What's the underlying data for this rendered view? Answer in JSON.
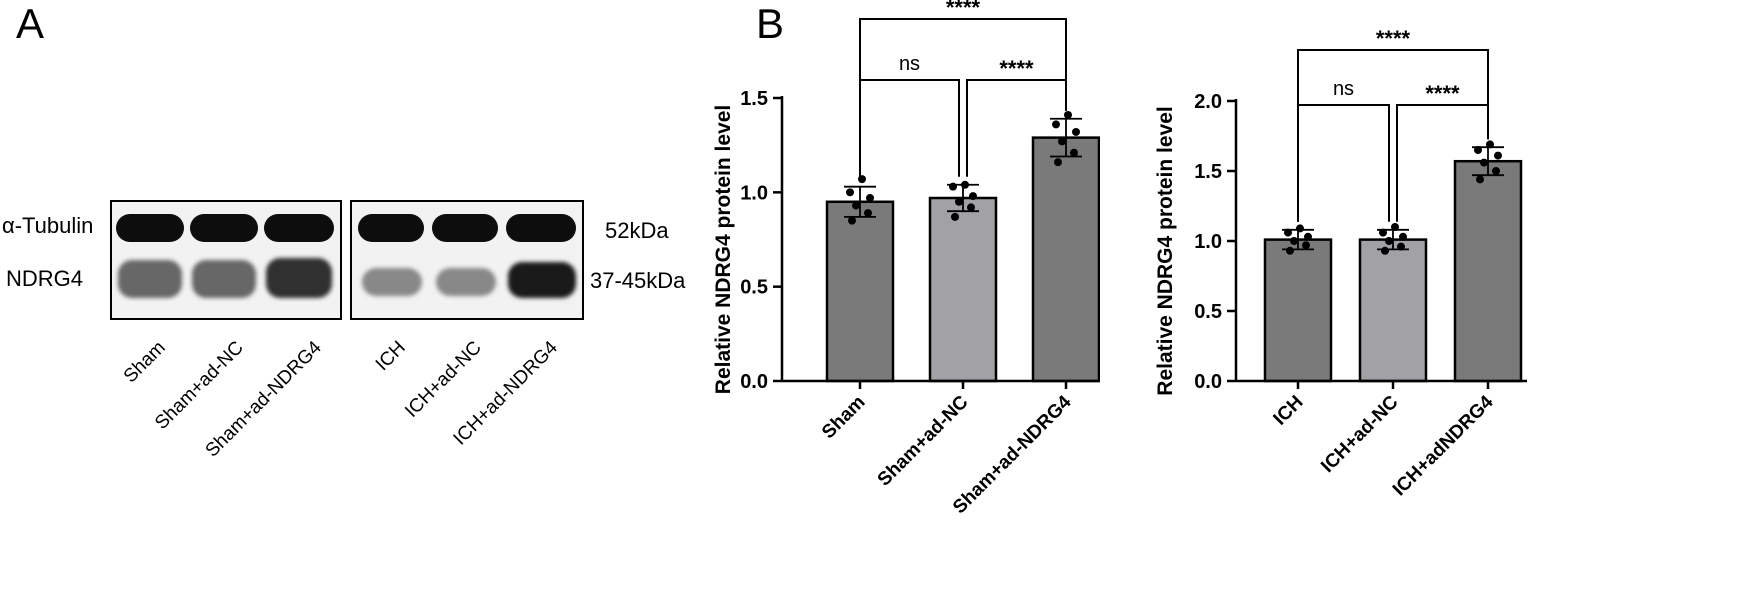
{
  "panels": {
    "a": "A",
    "b": "B"
  },
  "blot": {
    "row_labels": {
      "tubulin": "α-Tubulin",
      "ndrg4": "NDRG4"
    },
    "size_labels": {
      "tubulin": "52kDa",
      "ndrg4": "37-45kDa"
    },
    "lanes_left": [
      "Sham",
      "Sham+ad-NC",
      "Sham+ad-NDRG4"
    ],
    "lanes_right": [
      "ICH",
      "ICH+ad-NC",
      "ICH+ad-NDRG4"
    ],
    "ndrg4_band_intensity_left": [
      0.6,
      0.6,
      0.85
    ],
    "ndrg4_band_intensity_right": [
      0.45,
      0.45,
      0.95
    ]
  },
  "chart_data": [
    {
      "type": "bar",
      "ylabel": "Relative NDRG4 protein level",
      "categories": [
        "Sham",
        "Sham+ad-NC",
        "Sham+ad-NDRG4"
      ],
      "values": [
        0.95,
        0.97,
        1.29
      ],
      "errors": [
        0.08,
        0.07,
        0.1
      ],
      "points": [
        [
          0.85,
          0.89,
          0.93,
          0.97,
          1.0,
          1.07
        ],
        [
          0.87,
          0.92,
          0.95,
          0.98,
          1.03,
          1.04
        ],
        [
          1.16,
          1.21,
          1.27,
          1.32,
          1.36,
          1.41
        ]
      ],
      "bar_colors": [
        "#7a7a7a",
        "#a2a2a6",
        "#7a7a7a"
      ],
      "ylim": [
        0,
        1.5
      ],
      "yticks": [
        "0.0",
        "0.5",
        "1.0",
        "1.5"
      ],
      "comparisons": [
        {
          "from": 0,
          "to": 1,
          "label": "ns",
          "level": 1
        },
        {
          "from": 1,
          "to": 2,
          "label": "****",
          "level": 1
        },
        {
          "from": 0,
          "to": 2,
          "label": "****",
          "level": 2
        }
      ]
    },
    {
      "type": "bar",
      "ylabel": "Relative NDRG4 protein level",
      "categories": [
        "ICH",
        "ICH+ad-NC",
        "ICH+adNDRG4"
      ],
      "values": [
        1.01,
        1.01,
        1.57
      ],
      "errors": [
        0.07,
        0.07,
        0.1
      ],
      "points": [
        [
          0.93,
          0.97,
          1.0,
          1.03,
          1.06,
          1.09
        ],
        [
          0.93,
          0.96,
          1.0,
          1.03,
          1.06,
          1.1
        ],
        [
          1.44,
          1.5,
          1.56,
          1.61,
          1.65,
          1.69
        ]
      ],
      "bar_colors": [
        "#7a7a7a",
        "#a2a2a6",
        "#7a7a7a"
      ],
      "ylim": [
        0,
        2.0
      ],
      "yticks": [
        "0.0",
        "0.5",
        "1.0",
        "1.5",
        "2.0"
      ],
      "comparisons": [
        {
          "from": 0,
          "to": 1,
          "label": "ns",
          "level": 1
        },
        {
          "from": 1,
          "to": 2,
          "label": "****",
          "level": 1
        },
        {
          "from": 0,
          "to": 2,
          "label": "****",
          "level": 2
        }
      ]
    }
  ]
}
